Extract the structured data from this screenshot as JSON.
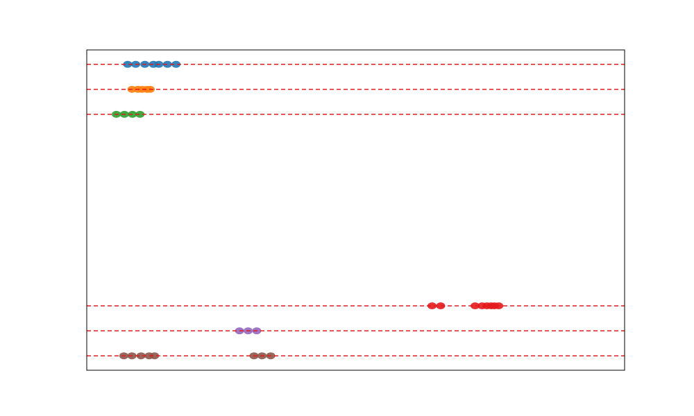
{
  "chart_data": {
    "type": "scatter",
    "title": "",
    "xlabel": "",
    "ylabel": "",
    "xlim": [
      0,
      1
    ],
    "ylim": [
      0,
      1
    ],
    "grid": false,
    "reference_line_color": "#e41a1c",
    "series": [
      {
        "color": "#1f77b4",
        "y": 0.955,
        "x": [
          0.076,
          0.091,
          0.108,
          0.124,
          0.134,
          0.15,
          0.166
        ]
      },
      {
        "color": "#ff7f0e",
        "y": 0.877,
        "x": [
          0.084,
          0.095,
          0.103,
          0.112,
          0.118
        ]
      },
      {
        "color": "#2ca02c",
        "y": 0.799,
        "x": [
          0.055,
          0.07,
          0.085,
          0.099
        ]
      },
      {
        "color": "#e41a1c",
        "y": 0.201,
        "x": [
          0.642,
          0.658,
          0.722,
          0.735,
          0.744,
          0.752,
          0.758,
          0.766
        ]
      },
      {
        "color": "#9467bd",
        "y": 0.123,
        "x": [
          0.284,
          0.3,
          0.316
        ]
      },
      {
        "color": "#8c564b",
        "y": 0.045,
        "x": [
          0.069,
          0.084,
          0.101,
          0.116,
          0.126,
          0.311,
          0.326,
          0.342
        ]
      }
    ]
  }
}
